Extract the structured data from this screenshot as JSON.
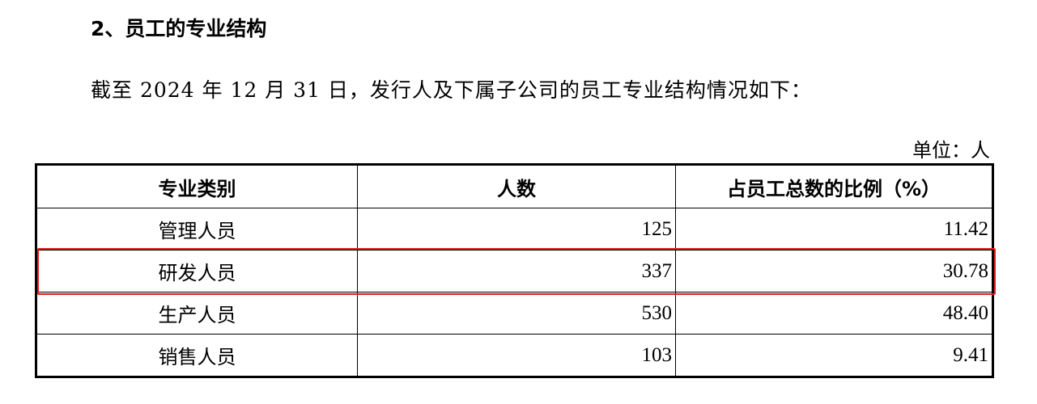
{
  "heading": "2、员工的专业结构",
  "paragraph": "截至 2024 年 12 月 31 日，发行人及下属子公司的员工专业结构情况如下：",
  "unit": "单位：人",
  "table": {
    "headers": [
      "专业类别",
      "人数",
      "占员工总数的比例（%）"
    ],
    "rows": [
      [
        "管理人员",
        "125",
        "11.42"
      ],
      [
        "研发人员",
        "337",
        "30.78"
      ],
      [
        "生产人员",
        "530",
        "48.40"
      ],
      [
        "销售人员",
        "103",
        "9.41"
      ]
    ]
  },
  "highlight_color": "#e02020"
}
